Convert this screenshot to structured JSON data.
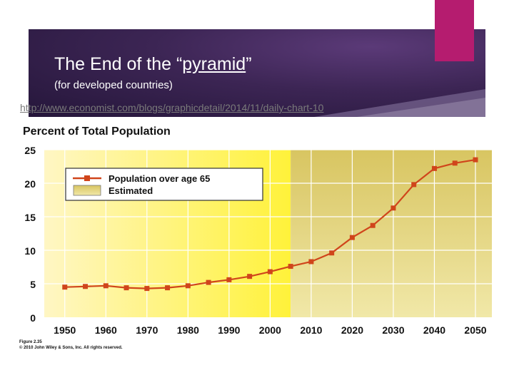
{
  "slide": {
    "title_prefix": "The End of the “",
    "title_underlined": "pyramid",
    "title_suffix": "”",
    "subtitle": "(for developed countries)",
    "link": "http://www.economist.com/blogs/graphicdetail/2014/11/daily-chart-10",
    "colors": {
      "banner": "#3c2554",
      "accent": "#b51c6f"
    }
  },
  "chart_data": {
    "type": "line",
    "title": "Percent of Total Population",
    "xlabel": "",
    "ylabel": "",
    "x_ticks": [
      1950,
      1960,
      1970,
      1980,
      1990,
      2000,
      2010,
      2020,
      2030,
      2040,
      2050
    ],
    "y_ticks": [
      0,
      5,
      10,
      15,
      20,
      25
    ],
    "xlim": [
      1945,
      2054
    ],
    "ylim": [
      0,
      25
    ],
    "estimated_from": 2005,
    "legend": {
      "position": "top-left",
      "series_label": "Population over age 65",
      "estimated_label": "Estimated"
    },
    "series": [
      {
        "name": "Population over age 65",
        "color": "#d0451b",
        "x": [
          1950,
          1955,
          1960,
          1965,
          1970,
          1975,
          1980,
          1985,
          1990,
          1995,
          2000,
          2005,
          2010,
          2015,
          2020,
          2025,
          2030,
          2035,
          2040,
          2045,
          2050
        ],
        "values": [
          4.5,
          4.6,
          4.7,
          4.4,
          4.3,
          4.4,
          4.7,
          5.2,
          5.6,
          6.1,
          6.8,
          7.6,
          8.3,
          9.6,
          11.9,
          13.7,
          16.3,
          19.8,
          22.2,
          23.0,
          23.5
        ]
      }
    ]
  },
  "caption": {
    "figure": "Figure 2.35",
    "copyright": "© 2010 John Wiley & Sons, Inc. All rights reserved."
  }
}
